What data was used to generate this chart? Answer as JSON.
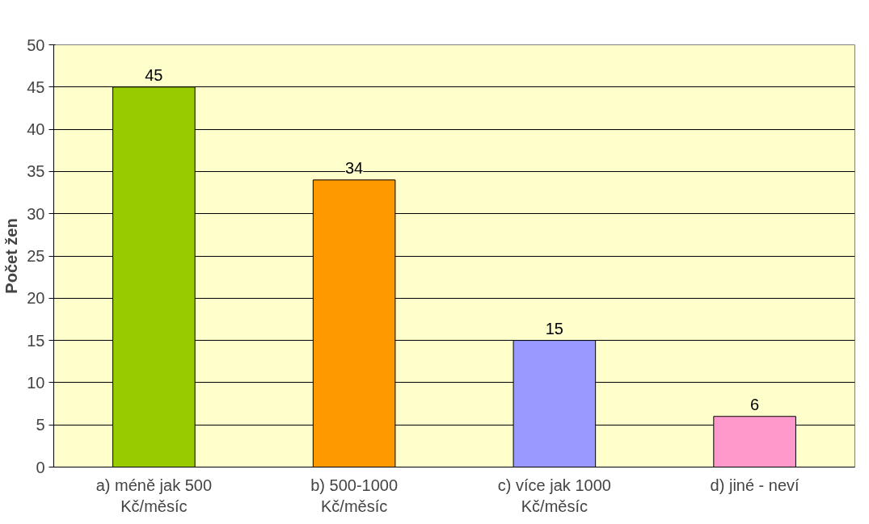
{
  "chart_data": {
    "type": "bar",
    "ylabel": "Počet žen",
    "categories": [
      "a) méně jak 500\nKč/měsíc",
      "b) 500-1000\nKč/měsíc",
      "c) více jak 1000\nKč/měsíc",
      "d) jiné - neví"
    ],
    "values": [
      45,
      34,
      15,
      6
    ],
    "colors": [
      "#99cc00",
      "#ff9900",
      "#9999ff",
      "#ff99cc"
    ],
    "ylim": [
      0,
      50
    ],
    "yticks": [
      0,
      5,
      10,
      15,
      20,
      25,
      30,
      35,
      40,
      45,
      50
    ],
    "grid": "y",
    "data_labels": true
  }
}
